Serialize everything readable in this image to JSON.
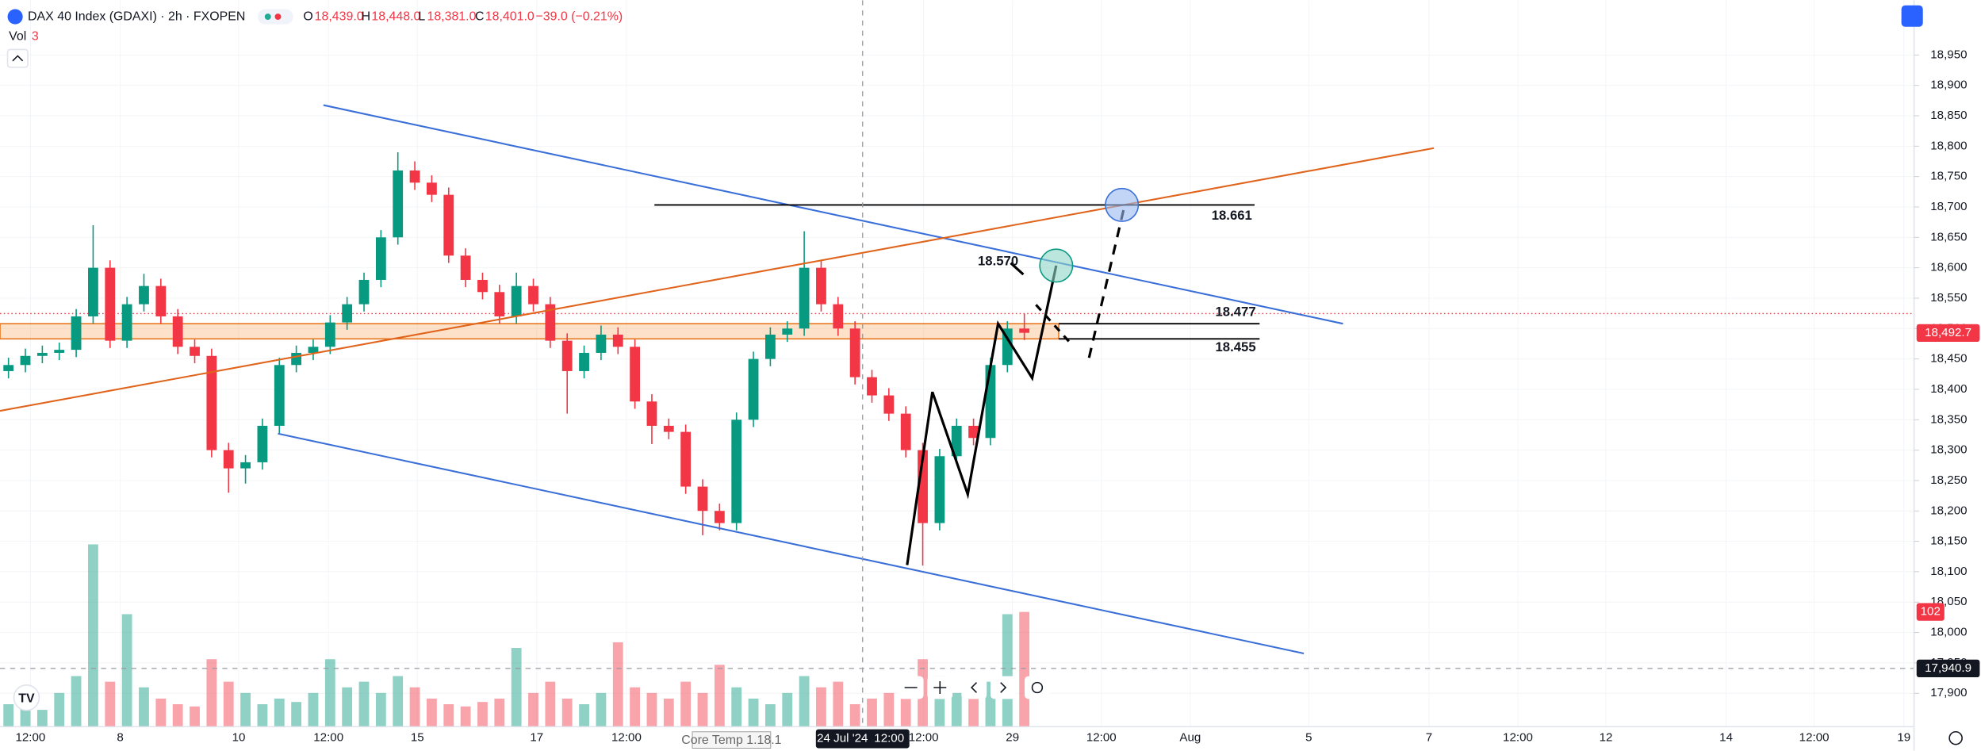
{
  "chart_data": {
    "type": "candlestick",
    "title": "DAX 40 Index (GDAXI) · 2h · FXOPEN",
    "ohlc_legend": {
      "o_label": "O",
      "o": "18,439.0",
      "h_label": "H",
      "h": "18,448.0",
      "l_label": "L",
      "l": "18,381.0",
      "c_label": "C",
      "c": "18,401.0",
      "change": "−39.0 (−0.21%)"
    },
    "volume_label": "Vol",
    "volume_length": "3",
    "x": [
      1,
      3,
      5,
      7,
      9,
      11,
      13,
      15,
      17,
      19,
      21,
      23,
      25,
      27,
      29,
      31,
      33,
      35,
      37,
      39,
      41,
      43,
      45,
      47,
      49,
      51,
      53,
      55,
      57,
      59,
      61,
      63,
      65,
      67,
      69,
      71,
      73,
      75,
      77,
      79,
      81,
      83,
      85,
      87,
      89,
      91,
      93,
      95,
      97,
      99,
      101,
      103,
      105,
      107,
      109,
      111,
      113,
      115,
      117,
      119,
      121
    ],
    "open": [
      18430,
      18440,
      18455,
      18460,
      18465,
      18520,
      18600,
      18480,
      18540,
      18570,
      18520,
      18470,
      18455,
      18300,
      18270,
      18280,
      18340,
      18440,
      18460,
      18470,
      18510,
      18540,
      18580,
      18650,
      18760,
      18740,
      18720,
      18620,
      18580,
      18560,
      18520,
      18570,
      18540,
      18480,
      18430,
      18460,
      18490,
      18470,
      18380,
      18340,
      18330,
      18240,
      18200,
      18180,
      18350,
      18450,
      18490,
      18500,
      18600,
      18540,
      18500,
      18420,
      18390,
      18360,
      18300,
      18180,
      18290,
      18340,
      18320,
      18440,
      18500
    ],
    "high": [
      18452,
      18467,
      18472,
      18477,
      18532,
      18670,
      18612,
      18552,
      18590,
      18582,
      18532,
      18482,
      18467,
      18312,
      18292,
      18352,
      18452,
      18472,
      18482,
      18522,
      18552,
      18592,
      18662,
      18790,
      18775,
      18752,
      18732,
      18632,
      18592,
      18572,
      18592,
      18582,
      18552,
      18492,
      18472,
      18505,
      18502,
      18482,
      18392,
      18352,
      18342,
      18252,
      18212,
      18362,
      18462,
      18502,
      18512,
      18660,
      18612,
      18552,
      18512,
      18432,
      18402,
      18372,
      18312,
      18302,
      18352,
      18352,
      18452,
      18512,
      18525
    ],
    "low": [
      18418,
      18428,
      18443,
      18448,
      18453,
      18508,
      18468,
      18468,
      18528,
      18508,
      18458,
      18443,
      18288,
      18230,
      18245,
      18268,
      18328,
      18428,
      18448,
      18458,
      18498,
      18528,
      18568,
      18638,
      18728,
      18708,
      18608,
      18568,
      18548,
      18508,
      18508,
      18528,
      18468,
      18360,
      18418,
      18448,
      18458,
      18368,
      18310,
      18318,
      18228,
      18160,
      18168,
      18168,
      18338,
      18438,
      18478,
      18488,
      18528,
      18488,
      18408,
      18378,
      18348,
      18288,
      18110,
      18168,
      18278,
      18308,
      18308,
      18428,
      18481
    ],
    "close": [
      18440,
      18455,
      18460,
      18465,
      18520,
      18600,
      18480,
      18540,
      18570,
      18520,
      18470,
      18455,
      18300,
      18270,
      18280,
      18340,
      18440,
      18460,
      18470,
      18510,
      18540,
      18580,
      18650,
      18760,
      18740,
      18720,
      18620,
      18580,
      18560,
      18520,
      18570,
      18540,
      18480,
      18430,
      18460,
      18490,
      18470,
      18380,
      18340,
      18330,
      18240,
      18200,
      18180,
      18350,
      18450,
      18490,
      18500,
      18600,
      18540,
      18500,
      18420,
      18390,
      18360,
      18300,
      18180,
      18290,
      18340,
      18320,
      18440,
      18500,
      18493
    ],
    "volume": [
      20,
      25,
      15,
      30,
      45,
      162,
      40,
      100,
      35,
      25,
      20,
      18,
      60,
      40,
      30,
      20,
      25,
      22,
      30,
      60,
      35,
      40,
      30,
      45,
      35,
      25,
      20,
      18,
      22,
      25,
      70,
      30,
      40,
      25,
      20,
      30,
      75,
      35,
      30,
      25,
      40,
      30,
      55,
      35,
      25,
      20,
      30,
      45,
      35,
      40,
      20,
      25,
      30,
      35,
      60,
      45,
      30,
      25,
      40,
      100,
      102
    ],
    "up_color": "#089981",
    "down_color": "#f23645",
    "xlim": [
      0,
      226.1
    ],
    "ylim": [
      17845,
      19040
    ],
    "vlim": [
      0,
      330
    ],
    "yticks": [
      {
        "value": 17900,
        "label": "17,900"
      },
      {
        "value": 17950,
        "label": "17,950"
      },
      {
        "value": 18000,
        "label": "18,000"
      },
      {
        "value": 18050,
        "label": "18,050"
      },
      {
        "value": 18100,
        "label": "18,100"
      },
      {
        "value": 18150,
        "label": "18,150"
      },
      {
        "value": 18200,
        "label": "18,200"
      },
      {
        "value": 18250,
        "label": "18,250"
      },
      {
        "value": 18300,
        "label": "18,300"
      },
      {
        "value": 18350,
        "label": "18,350"
      },
      {
        "value": 18400,
        "label": "18,400"
      },
      {
        "value": 18450,
        "label": "18,450"
      },
      {
        "value": 18500,
        "label": "18,500"
      },
      {
        "value": 18550,
        "label": "18,550"
      },
      {
        "value": 18600,
        "label": "18,600"
      },
      {
        "value": 18650,
        "label": "18,650"
      },
      {
        "value": 18700,
        "label": "18,700"
      },
      {
        "value": 18750,
        "label": "18,750"
      },
      {
        "value": 18800,
        "label": "18,800"
      },
      {
        "value": 18850,
        "label": "18,850"
      },
      {
        "value": 18900,
        "label": "18,900"
      },
      {
        "value": 18950,
        "label": "18,950"
      }
    ],
    "xticks": [
      {
        "value": 3.6,
        "label": "12:00"
      },
      {
        "value": 14.2,
        "label": "8"
      },
      {
        "value": 28.2,
        "label": "10"
      },
      {
        "value": 38.8,
        "label": "12:00"
      },
      {
        "value": 49.3,
        "label": "15"
      },
      {
        "value": 63.4,
        "label": "17"
      },
      {
        "value": 74,
        "label": "12:00"
      },
      {
        "value": 109.1,
        "label": "12:00"
      },
      {
        "value": 119.6,
        "label": "29"
      },
      {
        "value": 130.1,
        "label": "12:00"
      },
      {
        "value": 140.6,
        "label": "Aug"
      },
      {
        "value": 154.6,
        "label": "5"
      },
      {
        "value": 168.8,
        "label": "7"
      },
      {
        "value": 179.3,
        "label": "12:00"
      },
      {
        "value": 189.7,
        "label": "12"
      },
      {
        "value": 203.9,
        "label": "14"
      },
      {
        "value": 214.3,
        "label": "12:00"
      },
      {
        "value": 224.9,
        "label": "19"
      }
    ],
    "last_price": {
      "value": 18492.7,
      "label": "18,492.7"
    },
    "crosshair": {
      "x": 101.9,
      "price": 17940.9,
      "price_label": "17,940.9",
      "date_label": "24 Jul '24",
      "time_label": "12:00"
    },
    "annotations": [
      "18.661",
      "18.570",
      "18.477",
      "18.455"
    ],
    "tooltip": "Core Temp 1.18.1"
  }
}
